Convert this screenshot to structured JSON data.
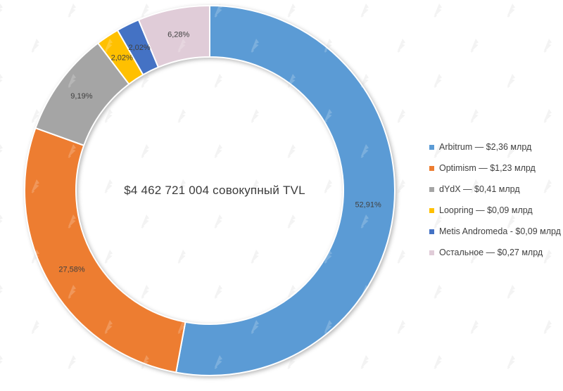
{
  "chart_data": {
    "type": "pie",
    "subtype": "donut",
    "title": "",
    "center_label": "$4 462 721 004 совокупный TVL",
    "categories": [
      "Arbitrum",
      "Optimism",
      "dYdX",
      "Loopring",
      "Metis Andromeda",
      "Остальное"
    ],
    "values_percent": [
      52.91,
      27.58,
      9.19,
      2.02,
      2.02,
      6.28
    ],
    "values_usd_mlrd": [
      2.36,
      1.23,
      0.41,
      0.09,
      0.09,
      0.27
    ],
    "slice_labels": [
      "52,91%",
      "27,58%",
      "9,19%",
      "2,02%",
      "2,02%",
      "6,28%"
    ],
    "colors": [
      "#5B9BD5",
      "#ED7D31",
      "#A5A5A5",
      "#FFC000",
      "#4472C4",
      "#E0CCD8"
    ],
    "label_color": "#404040",
    "start_angle_deg": 0,
    "direction": "clockwise",
    "legend": {
      "position": "right",
      "labels": [
        "Arbitrum — $2,36 млрд",
        "Optimism — $1,23 млрд",
        "dYdX — $0,41 млрд",
        "Loopring — $0,09 млрд",
        "Metis Andromeda - $0,09 млрд",
        "Остальное — $0,27 млрд"
      ]
    }
  }
}
